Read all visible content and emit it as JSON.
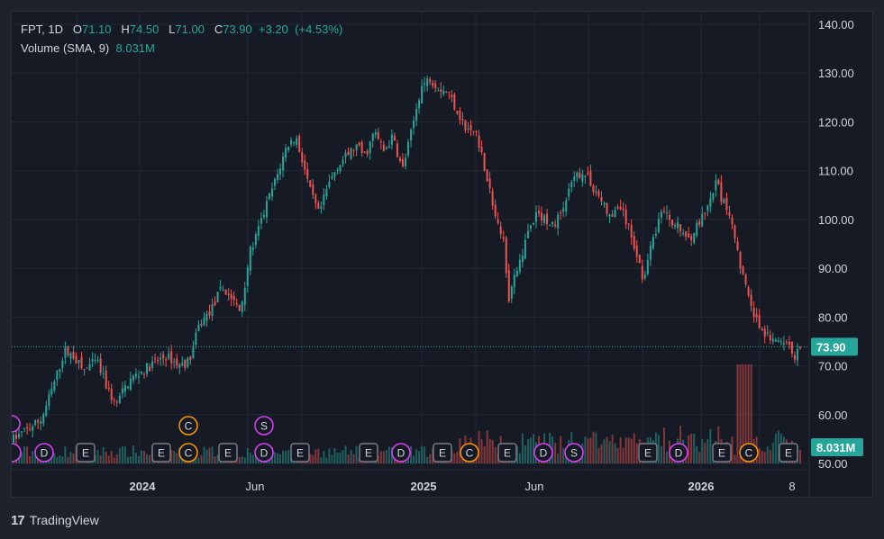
{
  "legend": {
    "symbol": "FPT",
    "interval": "1D",
    "open_label": "O",
    "open": "71.10",
    "high_label": "H",
    "high": "74.50",
    "low_label": "L",
    "low": "71.00",
    "close_label": "C",
    "close": "73.90",
    "change": "+3.20",
    "change_pct": "(+4.53%)",
    "volume_label": "Volume (SMA, 9)",
    "volume_value": "8.031M"
  },
  "price_axis": [
    "140.00",
    "130.00",
    "120.00",
    "110.00",
    "100.00",
    "90.00",
    "80.00",
    "70.00",
    "60.00",
    "50.00"
  ],
  "time_axis": [
    {
      "label": "2024",
      "bold": true
    },
    {
      "label": "Jun",
      "bold": false
    },
    {
      "label": "2025",
      "bold": true
    },
    {
      "label": "Jun",
      "bold": false
    },
    {
      "label": "2026",
      "bold": true
    },
    {
      "label": "8",
      "bold": false
    }
  ],
  "last_price_label": "73.90",
  "volume_label": "8.031M",
  "events_row": [
    "D",
    "E",
    "E",
    "C",
    "E",
    "D",
    "E",
    "E",
    "D",
    "E",
    "C",
    "E",
    "D",
    "S",
    "E",
    "D",
    "E",
    "C",
    "E"
  ],
  "events_upper": [
    "C",
    "S"
  ],
  "footer": {
    "brand": "TradingView",
    "mark": "17"
  },
  "colors": {
    "up": "#26a69a",
    "down": "#ef5350",
    "dividend": "#e040fb",
    "corporate": "#ff9800",
    "earnings": "#787b86"
  },
  "chart_data": {
    "type": "candlestick",
    "symbol": "FPT",
    "interval": "1D",
    "ylim": [
      50,
      140
    ],
    "series_path": [
      [
        0,
        55
      ],
      [
        3,
        57
      ],
      [
        6,
        59
      ],
      [
        9,
        67
      ],
      [
        11,
        73
      ],
      [
        13,
        72
      ],
      [
        15,
        69
      ],
      [
        18,
        71
      ],
      [
        20,
        66
      ],
      [
        22,
        62
      ],
      [
        25,
        67
      ],
      [
        28,
        69
      ],
      [
        31,
        71
      ],
      [
        33,
        72
      ],
      [
        36,
        70
      ],
      [
        38,
        71
      ],
      [
        40,
        78
      ],
      [
        43,
        82
      ],
      [
        45,
        86
      ],
      [
        47,
        84
      ],
      [
        49,
        81
      ],
      [
        51,
        93
      ],
      [
        53,
        98
      ],
      [
        55,
        104
      ],
      [
        57,
        109
      ],
      [
        59,
        115
      ],
      [
        61,
        117
      ],
      [
        63,
        110
      ],
      [
        64,
        106
      ],
      [
        66,
        101
      ],
      [
        68,
        107
      ],
      [
        70,
        111
      ],
      [
        72,
        113
      ],
      [
        74,
        115
      ],
      [
        76,
        113
      ],
      [
        78,
        118
      ],
      [
        80,
        114
      ],
      [
        82,
        117
      ],
      [
        84,
        110
      ],
      [
        86,
        118
      ],
      [
        88,
        127
      ],
      [
        90,
        129
      ],
      [
        92,
        127
      ],
      [
        94,
        126
      ],
      [
        96,
        122
      ],
      [
        98,
        118
      ],
      [
        100,
        118
      ],
      [
        102,
        110
      ],
      [
        104,
        101
      ],
      [
        106,
        95
      ],
      [
        107,
        84
      ],
      [
        109,
        90
      ],
      [
        111,
        97
      ],
      [
        113,
        101
      ],
      [
        115,
        100
      ],
      [
        117,
        99
      ],
      [
        119,
        103
      ],
      [
        121,
        108
      ],
      [
        123,
        110
      ],
      [
        125,
        107
      ],
      [
        127,
        104
      ],
      [
        129,
        100
      ],
      [
        131,
        103
      ],
      [
        133,
        98
      ],
      [
        135,
        92
      ],
      [
        136,
        88
      ],
      [
        138,
        95
      ],
      [
        140,
        102
      ],
      [
        142,
        100
      ],
      [
        144,
        98
      ],
      [
        146,
        96
      ],
      [
        148,
        99
      ],
      [
        150,
        102
      ],
      [
        152,
        108
      ],
      [
        153,
        104
      ],
      [
        155,
        101
      ],
      [
        157,
        91
      ],
      [
        159,
        83
      ],
      [
        161,
        78
      ],
      [
        163,
        76
      ],
      [
        165,
        75
      ],
      [
        167,
        74
      ],
      [
        169,
        72
      ],
      [
        170,
        73.9
      ]
    ]
  }
}
